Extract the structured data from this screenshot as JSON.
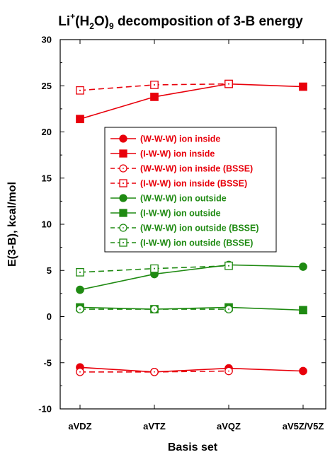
{
  "chart_data": {
    "type": "line",
    "title": {
      "pre": "Li",
      "sup": "+",
      "mid1": "(H",
      "sub1": "2",
      "mid2": "O)",
      "sub2": "9",
      "post": " decomposition of 3-B energy"
    },
    "xlabel": "Basis set",
    "ylabel": "E(3-B), kcal/mol",
    "categories": [
      "aVDZ",
      "aVTZ",
      "aVQZ",
      "aV5Z/V5Z"
    ],
    "ylim": [
      -10,
      30
    ],
    "yticks": [
      -10,
      -5,
      0,
      5,
      10,
      15,
      20,
      25,
      30
    ],
    "grid": false,
    "legend_placement": "center",
    "colors": {
      "red": "#e8000b",
      "green": "#1f8a12"
    },
    "series": [
      {
        "name": "(W-W-W) ion inside",
        "color": "#e8000b",
        "marker": "circle",
        "fill": "filled",
        "dash": "solid",
        "values": [
          -5.5,
          -6.0,
          -5.6,
          -5.9
        ]
      },
      {
        "name": "(I-W-W) ion inside",
        "color": "#e8000b",
        "marker": "square",
        "fill": "filled",
        "dash": "solid",
        "values": [
          21.4,
          23.8,
          25.2,
          24.9
        ]
      },
      {
        "name": "(W-W-W) ion inside (BSSE)",
        "color": "#e8000b",
        "marker": "circle",
        "fill": "open",
        "dash": "dashed",
        "values": [
          -6.0,
          -6.0,
          -5.9,
          null
        ]
      },
      {
        "name": "(I-W-W) ion inside (BSSE)",
        "color": "#e8000b",
        "marker": "square",
        "fill": "open",
        "dash": "dashed",
        "values": [
          24.5,
          25.1,
          25.2,
          null
        ]
      },
      {
        "name": "(W-W-W) ion outside",
        "color": "#1f8a12",
        "marker": "circle",
        "fill": "filled",
        "dash": "solid",
        "values": [
          2.9,
          4.6,
          5.6,
          5.4
        ]
      },
      {
        "name": "(I-W-W) ion outside",
        "color": "#1f8a12",
        "marker": "square",
        "fill": "filled",
        "dash": "solid",
        "values": [
          1.0,
          0.8,
          1.0,
          0.7
        ]
      },
      {
        "name": "(W-W-W) ion outside (BSSE)",
        "color": "#1f8a12",
        "marker": "circle",
        "fill": "open",
        "dash": "dashed",
        "values": [
          0.8,
          0.8,
          0.8,
          null
        ]
      },
      {
        "name": "(I-W-W) ion outside (BSSE)",
        "color": "#1f8a12",
        "marker": "square",
        "fill": "open",
        "dash": "dashed",
        "values": [
          4.8,
          5.2,
          5.5,
          null
        ]
      }
    ]
  }
}
